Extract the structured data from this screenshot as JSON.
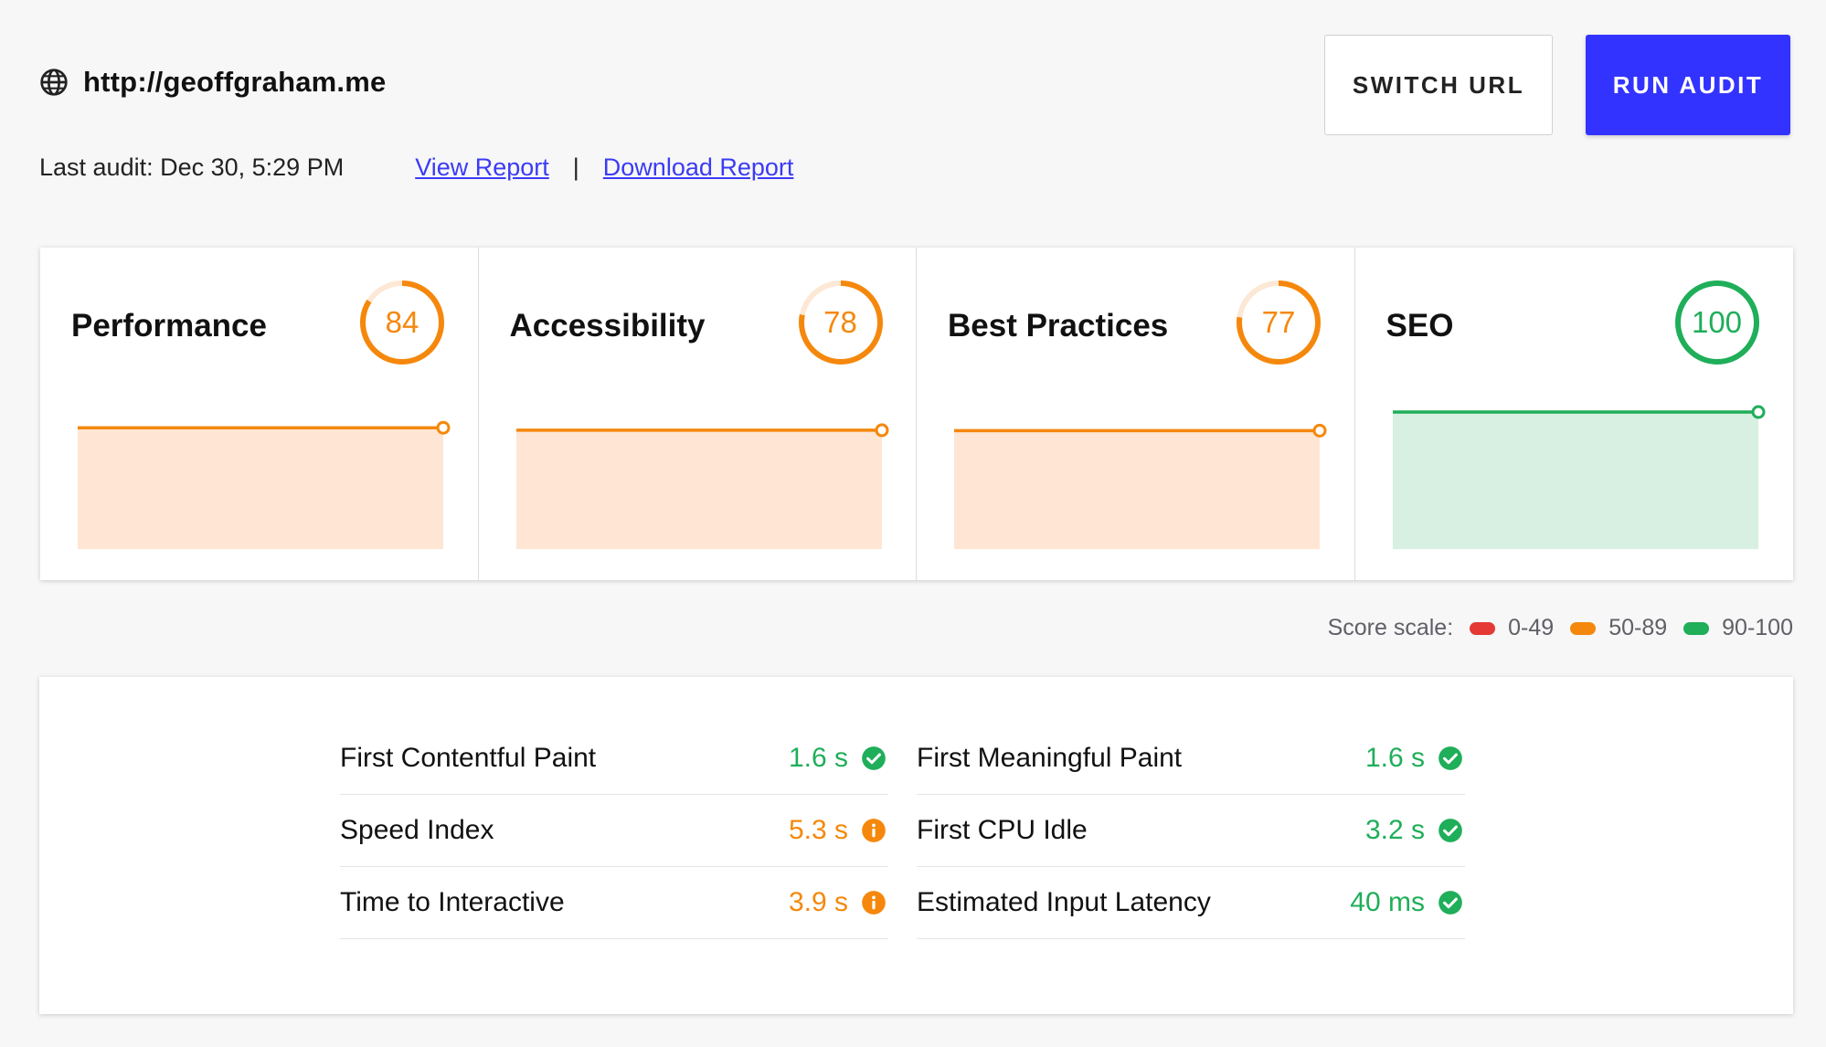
{
  "site": {
    "url": "http://geoffgraham.me",
    "icon": "globe-icon"
  },
  "audit": {
    "last_audit": "Last audit: Dec 30, 5:29 PM",
    "view_report": "View Report",
    "separator": "|",
    "download_report": "Download Report"
  },
  "buttons": {
    "switch_url": "SWITCH URL",
    "run_audit": "RUN AUDIT"
  },
  "colors": {
    "accent": "#3333ff",
    "orange": "#f5880c",
    "orange_fill": "#ffe6d4",
    "green": "#1fae59",
    "green_fill": "#d8f0e1",
    "red": "#e53935",
    "gauge_track_orange": "#fde8d6",
    "gauge_track_green": "#d7f0df"
  },
  "categories": [
    {
      "title": "Performance",
      "score": "84",
      "value": 84,
      "status": "average"
    },
    {
      "title": "Accessibility",
      "score": "78",
      "value": 78,
      "status": "average"
    },
    {
      "title": "Best Practices",
      "score": "77",
      "value": 77,
      "status": "average"
    },
    {
      "title": "SEO",
      "score": "100",
      "value": 100,
      "status": "good"
    }
  ],
  "score_scale": {
    "label": "Score scale:",
    "ranges": [
      {
        "label": "0-49",
        "color": "#e53935"
      },
      {
        "label": "50-89",
        "color": "#f5880c"
      },
      {
        "label": "90-100",
        "color": "#1fae59"
      }
    ]
  },
  "metrics": {
    "left": [
      {
        "label": "First Contentful Paint",
        "value": "1.6 s",
        "status": "good",
        "icon": "check-circle-icon"
      },
      {
        "label": "Speed Index",
        "value": "5.3 s",
        "status": "warn",
        "icon": "info-circle-icon"
      },
      {
        "label": "Time to Interactive",
        "value": "3.9 s",
        "status": "warn",
        "icon": "info-circle-icon"
      }
    ],
    "right": [
      {
        "label": "First Meaningful Paint",
        "value": "1.6 s",
        "status": "good",
        "icon": "check-circle-icon"
      },
      {
        "label": "First CPU Idle",
        "value": "3.2 s",
        "status": "good",
        "icon": "check-circle-icon"
      },
      {
        "label": "Estimated Input Latency",
        "value": "40 ms",
        "status": "good",
        "icon": "check-circle-icon"
      }
    ]
  }
}
